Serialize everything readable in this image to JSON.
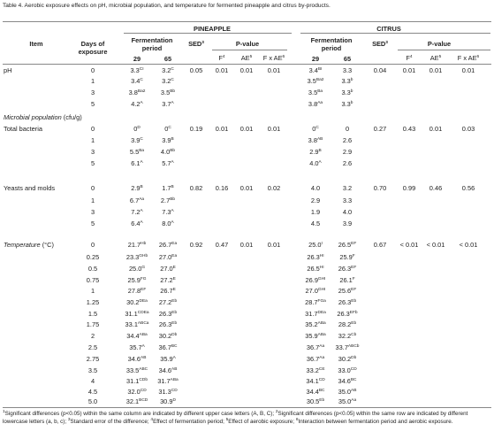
{
  "title": "Table 4. Aerobic exposure effects on pH, microbial population, and temperature for fermented pineapple and citrus by-products.",
  "header": {
    "groups": [
      "PINEAPPLE",
      "CITRUS"
    ],
    "item": "Item",
    "days": "Days of exposure",
    "fermentation": "Fermentation period",
    "sed": [
      "SED",
      "3"
    ],
    "pvalue": "P-value",
    "f": [
      "F",
      "4"
    ],
    "ae": [
      "AE",
      "5"
    ],
    "fxae": [
      "F x AE",
      "6"
    ],
    "periods": [
      "29",
      "65"
    ]
  },
  "rows": [
    {
      "item": [
        "",
        "pH"
      ],
      "day": "0",
      "cells": [
        [
          "3.3",
          "CI"
        ],
        [
          "3.2",
          "C"
        ],
        "0.05",
        "0.01",
        "0.01",
        "0.01",
        [
          "3.4",
          "BI"
        ],
        "3.3",
        "0.04",
        "0.01",
        "0.01",
        "0.01"
      ]
    },
    {
      "day": "1",
      "cells": [
        [
          "3.4",
          "C"
        ],
        [
          "3.2",
          "C"
        ],
        [
          "3.5",
          "Ba2"
        ],
        [
          "3.3",
          "b"
        ]
      ]
    },
    {
      "day": "3",
      "cells": [
        [
          "3.8",
          "Ba2"
        ],
        [
          "3.5",
          "Bb"
        ],
        [
          "3.5",
          "Ba"
        ],
        [
          "3.3",
          "b"
        ]
      ]
    },
    {
      "day": "5",
      "cells": [
        [
          "4.2",
          "A"
        ],
        [
          "3.7",
          "A"
        ],
        [
          "3.8",
          "Aa"
        ],
        [
          "3.3",
          "b"
        ]
      ]
    },
    {
      "item": [
        "Microbial population",
        "(cfu/g)"
      ]
    },
    {
      "item": [
        "",
        "Total bacteria"
      ],
      "day": "0",
      "cells": [
        [
          "0",
          "D"
        ],
        [
          "0",
          "C"
        ],
        "0.19",
        "0.01",
        "0.01",
        "0.01",
        [
          "0",
          "C"
        ],
        "0",
        "0.27",
        "0.43",
        "0.01",
        "0.03"
      ]
    },
    {
      "day": "1",
      "cells": [
        [
          "3.9",
          "C"
        ],
        [
          "3.9",
          "B"
        ],
        [
          "3.8",
          "AB"
        ],
        "2.6"
      ]
    },
    {
      "day": "3",
      "cells": [
        [
          "5.5",
          "Ba"
        ],
        [
          "4.0",
          "Bb"
        ],
        [
          "2.9",
          "B"
        ],
        "2.9"
      ]
    },
    {
      "day": "5",
      "cells": [
        [
          "6.1",
          "A"
        ],
        [
          "5.7",
          "A"
        ],
        [
          "4.0",
          "A"
        ],
        "2.6"
      ]
    },
    {
      "item": [
        "",
        "Yeasts and molds"
      ],
      "day": "0",
      "cells": [
        [
          "2.9",
          "B"
        ],
        [
          "1.7",
          "B"
        ],
        "0.82",
        "0.16",
        "0.01",
        "0.02",
        "4.0",
        "3.2",
        "0.70",
        "0.99",
        "0.46",
        "0.56"
      ]
    },
    {
      "day": "1",
      "cells": [
        [
          "6.7",
          "Aa"
        ],
        [
          "2.7",
          "Bb"
        ],
        "2.9",
        "3.3"
      ]
    },
    {
      "day": "3",
      "cells": [
        [
          "7.2",
          "A"
        ],
        [
          "7.3",
          "A"
        ],
        "1.9",
        "4.0"
      ]
    },
    {
      "day": "5",
      "cells": [
        [
          "6.4",
          "A"
        ],
        [
          "8.0",
          "A"
        ],
        "4.5",
        "3.9"
      ]
    },
    {
      "item": [
        "Temperature",
        "(°C)"
      ],
      "day": "0",
      "cells": [
        [
          "21.7",
          "Hb"
        ],
        [
          "26.7",
          "Ea"
        ],
        "0.92",
        "0.47",
        "0.01",
        "0.01",
        [
          "25.0",
          "I"
        ],
        [
          "26.5",
          "EF"
        ],
        "0.67",
        "< 0.01",
        "< 0.01",
        "< 0.01"
      ]
    },
    {
      "day": "0.25",
      "cells": [
        [
          "23.3",
          "GHb"
        ],
        [
          "27.0",
          "Ea"
        ],
        [
          "26.3",
          "HI"
        ],
        [
          "25.9",
          "F"
        ]
      ]
    },
    {
      "day": "0.5",
      "cells": [
        [
          "25.0",
          "G"
        ],
        [
          "27.0",
          "E"
        ],
        [
          "26.5",
          "HI"
        ],
        [
          "26.3",
          "EF"
        ]
      ]
    },
    {
      "day": "0.75",
      "cells": [
        [
          "25.9",
          "FG"
        ],
        [
          "27.2",
          "E"
        ],
        [
          "26.9",
          "GHI"
        ],
        [
          "26.1",
          "F"
        ]
      ]
    },
    {
      "day": "1",
      "cells": [
        [
          "27.8",
          "EF"
        ],
        [
          "26.7",
          "E"
        ],
        [
          "27.0",
          "GHI"
        ],
        [
          "25.6",
          "EF"
        ]
      ]
    },
    {
      "day": "1.25",
      "cells": [
        [
          "30.2",
          "DEa"
        ],
        [
          "27.2",
          "Eb"
        ],
        [
          "28.7",
          "FGa"
        ],
        [
          "26.3",
          "Eb"
        ]
      ]
    },
    {
      "day": "1.5",
      "cells": [
        [
          "31.1",
          "CDEa"
        ],
        [
          "26.3",
          "Eb"
        ],
        [
          "31.7",
          "DEa"
        ],
        [
          "26.3",
          "EFb"
        ]
      ]
    },
    {
      "day": "1.75",
      "cells": [
        [
          "33.1",
          "ABCa"
        ],
        [
          "26.3",
          "Eb"
        ],
        [
          "35.2",
          "ABa"
        ],
        [
          "28.2",
          "Eb"
        ]
      ]
    },
    {
      "day": "2",
      "cells": [
        [
          "34.4",
          "ABa"
        ],
        [
          "30.2",
          "Db"
        ],
        [
          "35.9",
          "ABa"
        ],
        [
          "32.2",
          "Cb"
        ]
      ]
    },
    {
      "day": "2.5",
      "cells": [
        [
          "35.7",
          "A"
        ],
        [
          "36.7",
          "BC"
        ],
        [
          "36.7",
          "Aa"
        ],
        [
          "33.7",
          "ABCb"
        ]
      ]
    },
    {
      "day": "2.75",
      "cells": [
        [
          "34.6",
          "AB"
        ],
        [
          "35.9",
          "A"
        ],
        [
          "36.7",
          "Aa"
        ],
        [
          "30.2",
          "Db"
        ]
      ]
    },
    {
      "day": "3.5",
      "cells": [
        [
          "33.5",
          "ABC"
        ],
        [
          "34.6",
          "AB"
        ],
        [
          "33.2",
          "CE"
        ],
        [
          "33.0",
          "CD"
        ]
      ]
    },
    {
      "day": "4",
      "cells": [
        [
          "31.1",
          "CDb"
        ],
        [
          "31.7",
          "ABa"
        ],
        [
          "34.1",
          "CD"
        ],
        [
          "34.6",
          "BC"
        ]
      ]
    },
    {
      "day": "4.5",
      "cells": [
        [
          "32.0",
          "CD"
        ],
        [
          "31.3",
          "CD"
        ],
        [
          "34.4",
          "BC"
        ],
        [
          "35.0",
          "AB"
        ]
      ]
    },
    {
      "day": "5.0",
      "cells": [
        [
          "32.1",
          "BCD"
        ],
        [
          "30.9",
          "D"
        ],
        [
          "30.5",
          "Eb"
        ],
        [
          "35.0",
          "Aa"
        ]
      ]
    }
  ],
  "footnotes": [
    [
      "1",
      "Significant differences (p<0.05) within the same column are indicated by different upper case letters (A, B, C);"
    ],
    [
      "2",
      "Significant differences (p<0.05) within the same row are indicated by different lowercase letters (a, b, c);"
    ],
    [
      "3",
      "Standard error of the difference;"
    ],
    [
      "4",
      "Effect of fermentation period;"
    ],
    [
      "5",
      "Effect of aerobic exposure;"
    ],
    [
      "6",
      "Interaction between fermentation period and aerobic exposure."
    ]
  ]
}
